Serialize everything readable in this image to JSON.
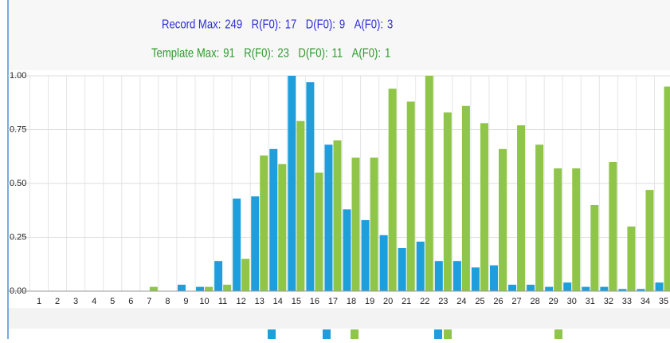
{
  "header": {
    "record": [
      {
        "label": "Record Max:",
        "value": "249"
      },
      {
        "label": "R(F0):",
        "value": "17"
      },
      {
        "label": "D(F0):",
        "value": "9"
      },
      {
        "label": "A(F0):",
        "value": "3"
      }
    ],
    "template": [
      {
        "label": "Template Max:",
        "value": "91"
      },
      {
        "label": "R(F0):",
        "value": "23"
      },
      {
        "label": "D(F0):",
        "value": "11"
      },
      {
        "label": "A(F0):",
        "value": "1"
      }
    ]
  },
  "chart_data": {
    "type": "bar",
    "categories": [
      "1",
      "2",
      "3",
      "4",
      "5",
      "6",
      "7",
      "8",
      "9",
      "10",
      "11",
      "12",
      "13",
      "14",
      "15",
      "16",
      "17",
      "18",
      "19",
      "20",
      "21",
      "22",
      "23",
      "24",
      "25",
      "26",
      "27",
      "28",
      "29",
      "30",
      "31",
      "32",
      "33",
      "34",
      "35"
    ],
    "series": [
      {
        "color": "#1e9fdc",
        "values": [
          0,
          0,
          0,
          0,
          0,
          0,
          0,
          0,
          0.03,
          0.02,
          0.14,
          0.43,
          0.44,
          0.66,
          1.0,
          0.97,
          0.68,
          0.38,
          0.33,
          0.26,
          0.2,
          0.23,
          0.14,
          0.14,
          0.11,
          0.12,
          0.03,
          0.03,
          0.02,
          0.04,
          0.02,
          0.02,
          0.01,
          0.01,
          0.04
        ]
      },
      {
        "color": "#8fc549",
        "values": [
          0,
          0,
          0,
          0,
          0,
          0,
          0.02,
          0,
          0,
          0.02,
          0.03,
          0.15,
          0.63,
          0.59,
          0.79,
          0.55,
          0.7,
          0.62,
          0.62,
          0.94,
          0.88,
          1.0,
          0.83,
          0.86,
          0.78,
          0.66,
          0.77,
          0.68,
          0.57,
          0.57,
          0.4,
          0.6,
          0.3,
          0.47,
          0.95
        ]
      }
    ],
    "ylim": [
      0,
      1
    ],
    "yticks": [
      {
        "value": 0,
        "label": "0.00"
      },
      {
        "value": 0.25,
        "label": "0.25"
      },
      {
        "value": 0.5,
        "label": "0.50"
      },
      {
        "value": 0.75,
        "label": "0.75"
      },
      {
        "value": 1,
        "label": "1.00"
      }
    ],
    "grid": true
  }
}
